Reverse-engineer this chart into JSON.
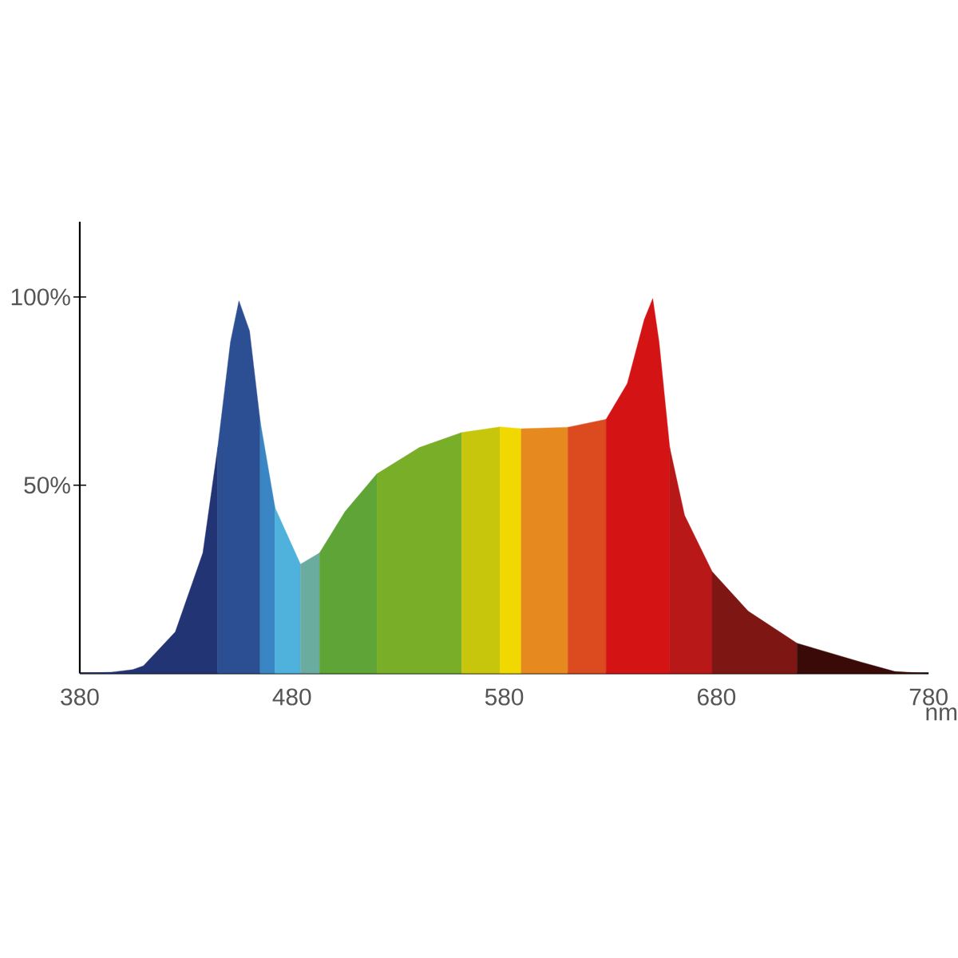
{
  "chart_data": {
    "type": "area",
    "xlabel": "nm",
    "xlim": [
      380,
      780
    ],
    "ylim": [
      0,
      120
    ],
    "xticks": [
      380,
      480,
      580,
      680,
      780
    ],
    "yticks": [
      {
        "value": 50,
        "label": "50%"
      },
      {
        "value": 100,
        "label": "100%"
      }
    ],
    "grid": false,
    "series": [
      {
        "color": "#233474",
        "x": [
          380,
          395,
          405,
          410,
          425,
          438,
          445
        ],
        "values": [
          0,
          0.3,
          1,
          2,
          11,
          32,
          60
        ]
      },
      {
        "color": "#2c4e92",
        "x": [
          445,
          451,
          455,
          460,
          465
        ],
        "values": [
          60,
          88,
          99,
          91,
          67
        ]
      },
      {
        "color": "#3a86c4",
        "x": [
          465,
          472
        ],
        "values": [
          67,
          44
        ]
      },
      {
        "color": "#4fb2dc",
        "x": [
          472,
          484
        ],
        "values": [
          44,
          29
        ]
      },
      {
        "color": "#6aaca0",
        "x": [
          484,
          493
        ],
        "values": [
          29,
          32
        ]
      },
      {
        "color": "#5fa436",
        "x": [
          493,
          505,
          520
        ],
        "values": [
          32,
          43,
          53
        ]
      },
      {
        "color": "#78ae28",
        "x": [
          520,
          540,
          560
        ],
        "values": [
          53,
          60,
          64
        ]
      },
      {
        "color": "#c8c60c",
        "x": [
          560,
          578
        ],
        "values": [
          64,
          65.5
        ]
      },
      {
        "color": "#f0d800",
        "x": [
          578,
          588
        ],
        "values": [
          65.5,
          65
        ]
      },
      {
        "color": "#e68a20",
        "x": [
          588,
          610
        ],
        "values": [
          65,
          65.4
        ]
      },
      {
        "color": "#dc4a20",
        "x": [
          610,
          628
        ],
        "values": [
          65.4,
          67.5
        ]
      },
      {
        "color": "#d41414",
        "x": [
          628,
          638,
          646,
          650,
          653,
          658
        ],
        "values": [
          67.5,
          77,
          94,
          99.6,
          88,
          60
        ]
      },
      {
        "color": "#b81818",
        "x": [
          658,
          665,
          678
        ],
        "values": [
          60,
          42,
          27
        ]
      },
      {
        "color": "#7e1614",
        "x": [
          678,
          695,
          718
        ],
        "values": [
          27,
          16.5,
          8
        ]
      },
      {
        "color": "#3a0a08",
        "x": [
          718,
          748,
          764,
          778
        ],
        "values": [
          8,
          3,
          0.5,
          0
        ]
      }
    ]
  }
}
